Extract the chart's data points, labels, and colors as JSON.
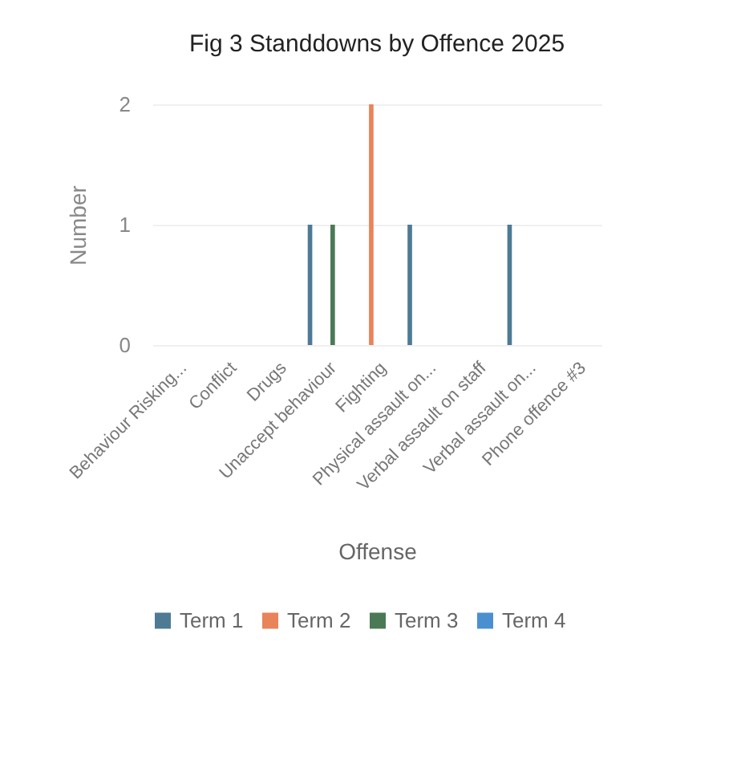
{
  "chart_data": {
    "type": "bar",
    "title": "Fig 3  Standdowns by Offence 2025",
    "xlabel": "Offense",
    "ylabel": "Number",
    "categories": [
      "Behaviour Risking...",
      "Conflict",
      "Drugs",
      "Unaccept behaviour",
      "Fighting",
      "Physical assault on...",
      "Verbal assault on staff",
      "Verbal assault on...",
      "Phone offence #3"
    ],
    "series": [
      {
        "name": "Term 1",
        "color": "#4e7a94",
        "values": [
          null,
          null,
          null,
          1,
          null,
          1,
          null,
          1,
          null
        ]
      },
      {
        "name": "Term 2",
        "color": "#e8835a",
        "values": [
          null,
          null,
          null,
          null,
          2,
          null,
          null,
          null,
          null
        ]
      },
      {
        "name": "Term 3",
        "color": "#4a7a55",
        "values": [
          null,
          null,
          null,
          1,
          null,
          null,
          null,
          null,
          null
        ]
      },
      {
        "name": "Term 4",
        "color": "#4a90d0",
        "values": [
          null,
          null,
          null,
          null,
          null,
          null,
          null,
          null,
          null
        ]
      }
    ],
    "ylim": [
      0,
      2
    ],
    "yticks": [
      0,
      1,
      2
    ],
    "grid": "y",
    "legend": "bottom"
  }
}
